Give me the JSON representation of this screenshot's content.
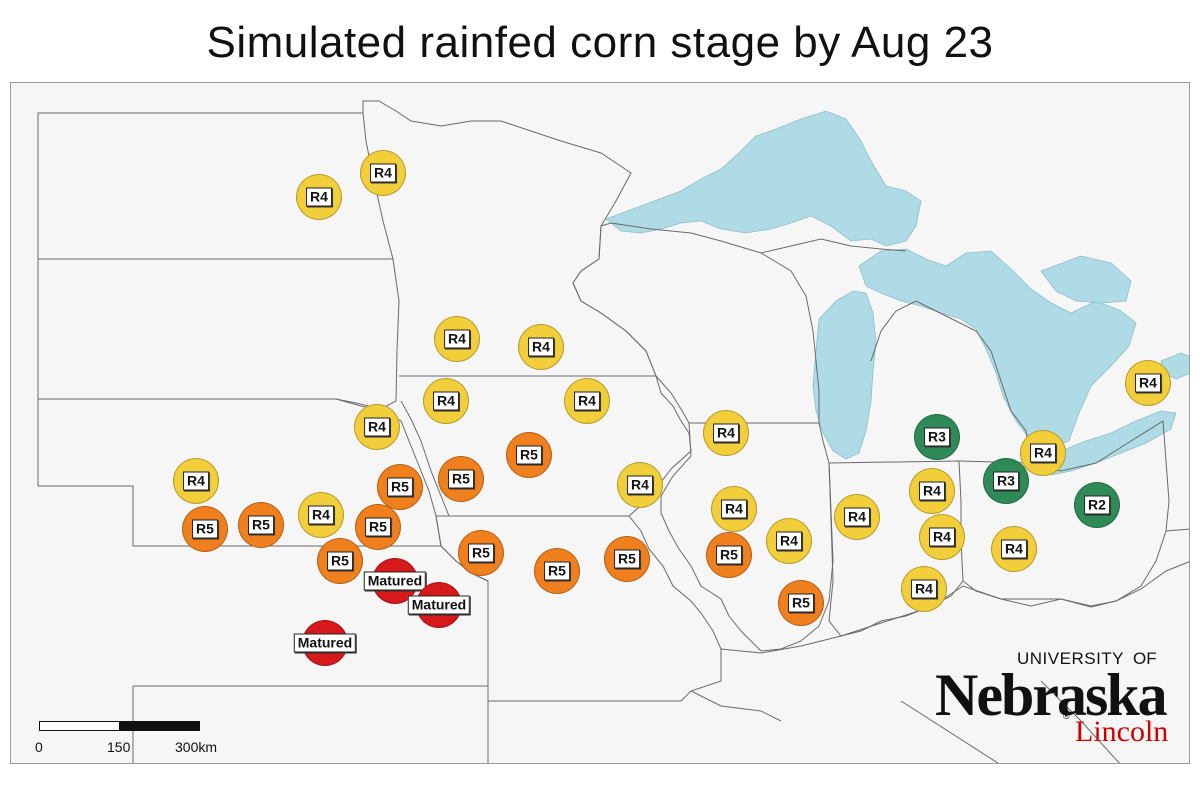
{
  "title": "Simulated rainfed corn stage by Aug 23",
  "colors": {
    "R2": "#2e8b57",
    "R3": "#2e8b57",
    "R4": "#f2cf3a",
    "R5": "#f07f1e",
    "Matured": "#d7191c",
    "lake": "#aedbe5",
    "land": "#f6f6f6",
    "border": "#6a6a6a"
  },
  "sites": [
    {
      "stage": "R4"
    },
    {
      "stage": "R4"
    },
    {
      "stage": "R4"
    },
    {
      "stage": "R4"
    },
    {
      "stage": "R4"
    },
    {
      "stage": "R4"
    },
    {
      "stage": "R4"
    },
    {
      "stage": "R5"
    },
    {
      "stage": "R4"
    },
    {
      "stage": "R5"
    },
    {
      "stage": "R5"
    },
    {
      "stage": "R4"
    },
    {
      "stage": "R4"
    },
    {
      "stage": "R4"
    },
    {
      "stage": "R5"
    },
    {
      "stage": "R5"
    },
    {
      "stage": "R4"
    },
    {
      "stage": "R5"
    },
    {
      "stage": "R5"
    },
    {
      "stage": "R5"
    },
    {
      "stage": "R5"
    },
    {
      "stage": "R5"
    },
    {
      "stage": "R5"
    },
    {
      "stage": "R4"
    },
    {
      "stage": "R4"
    },
    {
      "stage": "R5"
    },
    {
      "stage": "R4"
    },
    {
      "stage": "R4"
    },
    {
      "stage": "R3"
    },
    {
      "stage": "R4"
    },
    {
      "stage": "R3"
    },
    {
      "stage": "R2"
    },
    {
      "stage": "R4"
    },
    {
      "stage": "R4"
    },
    {
      "stage": "R4"
    },
    {
      "stage": "Matured"
    },
    {
      "stage": "Matured"
    },
    {
      "stage": "Matured"
    }
  ],
  "scale_bar": {
    "labels": [
      "0",
      "150",
      "300km"
    ]
  },
  "logo": {
    "line1": "UNIVERSITY",
    "line1b": "OF",
    "line2": "Nebraska",
    "line3": "Lincoln",
    "reg": "®"
  }
}
